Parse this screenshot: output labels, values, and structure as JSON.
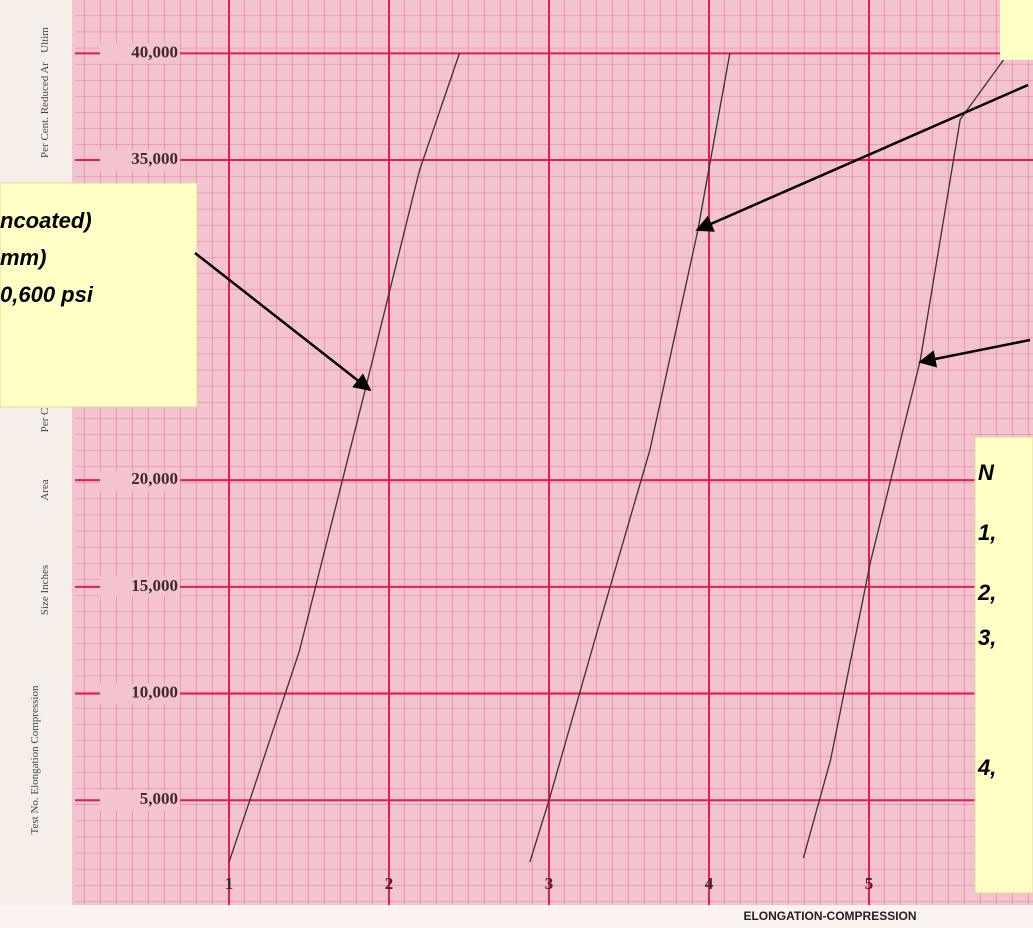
{
  "chart_data": {
    "type": "line",
    "xlim": [
      0,
      6.03
    ],
    "ylim": [
      0,
      42500
    ],
    "xticks": [
      1,
      2,
      3,
      4,
      5
    ],
    "yticks": [
      {
        "value": 5000,
        "label": "5,000"
      },
      {
        "value": 10000,
        "label": "10,000"
      },
      {
        "value": 15000,
        "label": "15,000"
      },
      {
        "value": 20000,
        "label": "20,000"
      },
      {
        "value": 35000,
        "label": "35,000"
      },
      {
        "value": 40000,
        "label": "40,000"
      }
    ],
    "x_label": "ELONGATION-COMPRESSION",
    "series": [
      {
        "color": "#333333",
        "x": [
          1.0,
          1.13,
          1.44,
          1.85,
          2.19,
          2.44
        ],
        "values": [
          2100,
          5000,
          12000,
          24200,
          34500,
          40000
        ]
      },
      {
        "color": "#333333",
        "x": [
          2.88,
          3.0,
          3.32,
          3.63,
          3.93,
          4.13
        ],
        "values": [
          2100,
          5000,
          13400,
          21400,
          31700,
          40000
        ]
      },
      {
        "color": "#333333",
        "x": [
          4.59,
          4.76,
          5.01,
          5.32,
          5.57,
          5.88
        ],
        "values": [
          2300,
          6900,
          16200,
          25600,
          36900,
          40100
        ]
      }
    ],
    "side_labels": [
      "Ultim",
      "Per Cent. Reduced Ar",
      "Per C",
      "Area",
      "Size Inches",
      "Test No. Elongation Compression"
    ],
    "annotations": [
      {
        "lines": [
          "ncoated)",
          "mm)",
          "0,600 psi"
        ]
      },
      {
        "lines": [
          "N",
          "1,",
          "2,",
          "3,",
          "4,"
        ]
      }
    ]
  }
}
